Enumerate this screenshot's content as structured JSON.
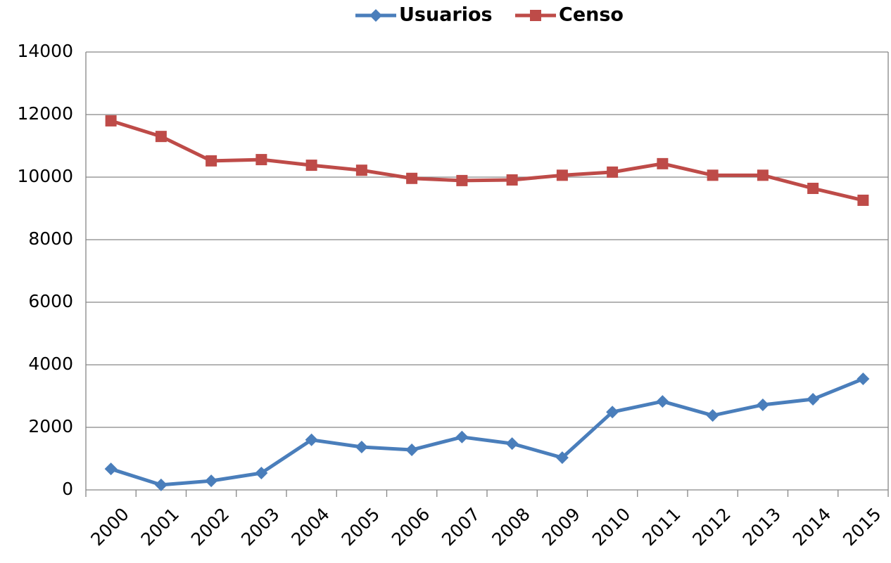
{
  "chart_data": {
    "type": "line",
    "categories": [
      "2000",
      "2001",
      "2002",
      "2003",
      "2004",
      "2005",
      "2006",
      "2007",
      "2008",
      "2009",
      "2010",
      "2011",
      "2012",
      "2013",
      "2014",
      "2015"
    ],
    "series": [
      {
        "name": "Usuarios",
        "color": "#4a7ebb",
        "marker": "diamond",
        "values": [
          670,
          160,
          290,
          540,
          1600,
          1370,
          1280,
          1690,
          1480,
          1030,
          2490,
          2830,
          2380,
          2720,
          2900,
          3550
        ]
      },
      {
        "name": "Censo",
        "color": "#be4b48",
        "marker": "square",
        "values": [
          11800,
          11300,
          10520,
          10560,
          10380,
          10220,
          9960,
          9890,
          9910,
          10060,
          10160,
          10430,
          10060,
          10060,
          9640,
          9260
        ]
      }
    ],
    "ylim": [
      0,
      14000
    ],
    "yticks": [
      0,
      2000,
      4000,
      6000,
      8000,
      10000,
      12000,
      14000
    ],
    "grid": true,
    "legend": "top"
  }
}
